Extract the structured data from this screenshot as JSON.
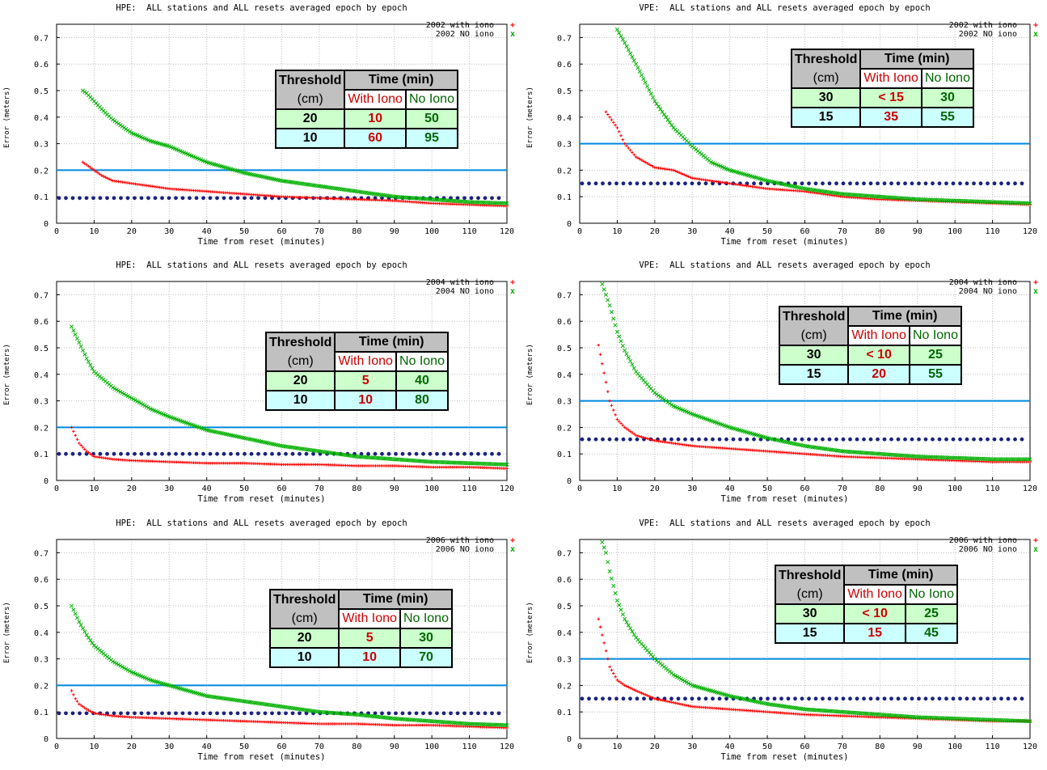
{
  "figure": {
    "panels": [
      {
        "id": "hpe-2002",
        "title": "HPE:  ALL stations and ALL resets averaged epoch by epoch",
        "ylabel": "Error (meters)",
        "xlabel": "Time from reset (minutes)",
        "legend": [
          {
            "label": "2002 with iono",
            "marker": "+"
          },
          {
            "label": "2002 NO iono",
            "marker": "x"
          }
        ],
        "table": {
          "threshold_h1": "Threshold",
          "threshold_h2": "(cm)",
          "time_h": "Time (min)",
          "with_h": "With Iono",
          "no_h": "No Iono",
          "rows": [
            {
              "th": "20",
              "with": "10",
              "no": "50"
            },
            {
              "th": "10",
              "with": "60",
              "no": "95"
            }
          ]
        }
      },
      {
        "id": "vpe-2002",
        "title": "VPE:  ALL stations and ALL resets averaged epoch by epoch",
        "ylabel": "Error (meters)",
        "xlabel": "Time from reset (minutes)",
        "legend": [
          {
            "label": "2002 with iono",
            "marker": "+"
          },
          {
            "label": "2002 NO iono",
            "marker": "x"
          }
        ],
        "table": {
          "threshold_h1": "Threshold",
          "threshold_h2": "(cm)",
          "time_h": "Time (min)",
          "with_h": "With Iono",
          "no_h": "No Iono",
          "rows": [
            {
              "th": "30",
              "with": "< 15",
              "no": "30"
            },
            {
              "th": "15",
              "with": "35",
              "no": "55"
            }
          ]
        }
      },
      {
        "id": "hpe-2004",
        "title": "HPE:  ALL stations and ALL resets averaged epoch by epoch",
        "ylabel": "Error (meters)",
        "xlabel": "Time from reset (minutes)",
        "legend": [
          {
            "label": "2004 with iono",
            "marker": "+"
          },
          {
            "label": "2004 NO iono",
            "marker": "x"
          }
        ],
        "table": {
          "threshold_h1": "Threshold",
          "threshold_h2": "(cm)",
          "time_h": "Time (min)",
          "with_h": "With Iono",
          "no_h": "No Iono",
          "rows": [
            {
              "th": "20",
              "with": "5",
              "no": "40"
            },
            {
              "th": "10",
              "with": "10",
              "no": "80"
            }
          ]
        }
      },
      {
        "id": "vpe-2004",
        "title": "VPE:  ALL stations and ALL resets averaged epoch by epoch",
        "ylabel": "Error (meters)",
        "xlabel": "Time from reset (minutes)",
        "legend": [
          {
            "label": "2004 with iono",
            "marker": "+"
          },
          {
            "label": "2004 NO iono",
            "marker": "x"
          }
        ],
        "table": {
          "threshold_h1": "Threshold",
          "threshold_h2": "(cm)",
          "time_h": "Time (min)",
          "with_h": "With Iono",
          "no_h": "No Iono",
          "rows": [
            {
              "th": "30",
              "with": "< 10",
              "no": "25"
            },
            {
              "th": "15",
              "with": "20",
              "no": "55"
            }
          ]
        }
      },
      {
        "id": "hpe-2006",
        "title": "HPE:  ALL stations and ALL resets averaged epoch by epoch",
        "ylabel": "Error (meters)",
        "xlabel": "Time from reset (minutes)",
        "legend": [
          {
            "label": "2006 with iono",
            "marker": "+"
          },
          {
            "label": "2006 NO iono",
            "marker": "x"
          }
        ],
        "table": {
          "threshold_h1": "Threshold",
          "threshold_h2": "(cm)",
          "time_h": "Time (min)",
          "with_h": "With Iono",
          "no_h": "No Iono",
          "rows": [
            {
              "th": "20",
              "with": "5",
              "no": "30"
            },
            {
              "th": "10",
              "with": "10",
              "no": "70"
            }
          ]
        }
      },
      {
        "id": "vpe-2006",
        "title": "VPE:  ALL stations and ALL resets averaged epoch by epoch",
        "ylabel": "Error (meters)",
        "xlabel": "Time from reset (minutes)",
        "legend": [
          {
            "label": "2006 with iono",
            "marker": "+"
          },
          {
            "label": "2006 NO iono",
            "marker": "x"
          }
        ],
        "table": {
          "threshold_h1": "Threshold",
          "threshold_h2": "(cm)",
          "time_h": "Time (min)",
          "with_h": "With Iono",
          "no_h": "No Iono",
          "rows": [
            {
              "th": "30",
              "with": "< 10",
              "no": "25"
            },
            {
              "th": "15",
              "with": "15",
              "no": "45"
            }
          ]
        }
      }
    ],
    "colors": {
      "with_iono": "#ff0000",
      "no_iono": "#00b000",
      "threshold_line": "#0088dd",
      "dotted_ref": "#1a237e",
      "grid": "#bbbbbb"
    }
  },
  "chart_data": [
    {
      "type": "scatter",
      "title": "HPE:  ALL stations and ALL resets averaged epoch by epoch",
      "xlabel": "Time from reset (minutes)",
      "ylabel": "Error (meters)",
      "xlim": [
        0,
        120
      ],
      "ylim": [
        0,
        0.75
      ],
      "xticks": [
        0,
        10,
        20,
        30,
        40,
        50,
        60,
        70,
        80,
        90,
        100,
        110,
        120
      ],
      "yticks": [
        0,
        0.1,
        0.2,
        0.3,
        0.4,
        0.5,
        0.6,
        0.7
      ],
      "grid": true,
      "legend_position": "top-right",
      "threshold_line": 0.2,
      "reference_dotted": 0.095,
      "series": [
        {
          "name": "2002 with iono",
          "marker": "+",
          "x": [
            7,
            8,
            10,
            12,
            15,
            20,
            25,
            30,
            40,
            50,
            60,
            70,
            80,
            90,
            100,
            110,
            120
          ],
          "y": [
            0.23,
            0.22,
            0.2,
            0.18,
            0.16,
            0.15,
            0.14,
            0.13,
            0.12,
            0.11,
            0.1,
            0.095,
            0.09,
            0.085,
            0.075,
            0.07,
            0.065
          ]
        },
        {
          "name": "2002 NO iono",
          "marker": "x",
          "x": [
            7,
            8,
            10,
            12,
            15,
            20,
            25,
            30,
            35,
            40,
            50,
            60,
            70,
            80,
            90,
            100,
            110,
            120
          ],
          "y": [
            0.5,
            0.49,
            0.46,
            0.43,
            0.39,
            0.34,
            0.31,
            0.29,
            0.26,
            0.23,
            0.19,
            0.16,
            0.14,
            0.12,
            0.1,
            0.09,
            0.08,
            0.075
          ]
        }
      ]
    },
    {
      "type": "scatter",
      "title": "VPE:  ALL stations and ALL resets averaged epoch by epoch",
      "xlabel": "Time from reset (minutes)",
      "ylabel": "Error (meters)",
      "xlim": [
        0,
        120
      ],
      "ylim": [
        0,
        0.75
      ],
      "xticks": [
        0,
        10,
        20,
        30,
        40,
        50,
        60,
        70,
        80,
        90,
        100,
        110,
        120
      ],
      "yticks": [
        0,
        0.1,
        0.2,
        0.3,
        0.4,
        0.5,
        0.6,
        0.7
      ],
      "grid": true,
      "legend_position": "top-right",
      "threshold_line": 0.3,
      "reference_dotted": 0.15,
      "series": [
        {
          "name": "2002 with iono",
          "marker": "+",
          "x": [
            7,
            8,
            10,
            12,
            15,
            20,
            25,
            30,
            40,
            50,
            60,
            70,
            80,
            90,
            100,
            110,
            120
          ],
          "y": [
            0.42,
            0.4,
            0.36,
            0.3,
            0.25,
            0.21,
            0.2,
            0.17,
            0.15,
            0.13,
            0.12,
            0.1,
            0.09,
            0.085,
            0.08,
            0.075,
            0.07
          ]
        },
        {
          "name": "2002 NO iono",
          "marker": "x",
          "x": [
            10,
            12,
            15,
            20,
            25,
            30,
            35,
            40,
            50,
            60,
            70,
            80,
            90,
            100,
            110,
            120
          ],
          "y": [
            0.73,
            0.68,
            0.6,
            0.46,
            0.36,
            0.29,
            0.23,
            0.2,
            0.16,
            0.13,
            0.11,
            0.1,
            0.09,
            0.085,
            0.08,
            0.075
          ]
        }
      ]
    },
    {
      "type": "scatter",
      "title": "HPE:  ALL stations and ALL resets averaged epoch by epoch",
      "xlabel": "Time from reset (minutes)",
      "ylabel": "Error (meters)",
      "xlim": [
        0,
        120
      ],
      "ylim": [
        0,
        0.75
      ],
      "xticks": [
        0,
        10,
        20,
        30,
        40,
        50,
        60,
        70,
        80,
        90,
        100,
        110,
        120
      ],
      "yticks": [
        0,
        0.1,
        0.2,
        0.3,
        0.4,
        0.5,
        0.6,
        0.7
      ],
      "grid": true,
      "legend_position": "top-right",
      "threshold_line": 0.2,
      "reference_dotted": 0.1,
      "series": [
        {
          "name": "2004 with iono",
          "marker": "+",
          "x": [
            4,
            5,
            6,
            8,
            10,
            15,
            20,
            30,
            40,
            50,
            60,
            70,
            80,
            90,
            100,
            110,
            120
          ],
          "y": [
            0.2,
            0.17,
            0.14,
            0.11,
            0.09,
            0.08,
            0.075,
            0.07,
            0.065,
            0.065,
            0.06,
            0.06,
            0.055,
            0.055,
            0.05,
            0.05,
            0.045
          ]
        },
        {
          "name": "2004 NO iono",
          "marker": "x",
          "x": [
            4,
            5,
            6,
            8,
            10,
            15,
            20,
            25,
            30,
            40,
            50,
            60,
            70,
            80,
            90,
            100,
            110,
            120
          ],
          "y": [
            0.58,
            0.55,
            0.52,
            0.46,
            0.41,
            0.35,
            0.31,
            0.27,
            0.24,
            0.19,
            0.16,
            0.13,
            0.11,
            0.09,
            0.08,
            0.07,
            0.065,
            0.06
          ]
        }
      ]
    },
    {
      "type": "scatter",
      "title": "VPE:  ALL stations and ALL resets averaged epoch by epoch",
      "xlabel": "Time from reset (minutes)",
      "ylabel": "Error (meters)",
      "xlim": [
        0,
        120
      ],
      "ylim": [
        0,
        0.75
      ],
      "xticks": [
        0,
        10,
        20,
        30,
        40,
        50,
        60,
        70,
        80,
        90,
        100,
        110,
        120
      ],
      "yticks": [
        0,
        0.1,
        0.2,
        0.3,
        0.4,
        0.5,
        0.6,
        0.7
      ],
      "grid": true,
      "legend_position": "top-right",
      "threshold_line": 0.3,
      "reference_dotted": 0.155,
      "series": [
        {
          "name": "2004 with iono",
          "marker": "+",
          "x": [
            5,
            6,
            7,
            8,
            10,
            12,
            15,
            20,
            30,
            40,
            50,
            60,
            70,
            80,
            90,
            100,
            110,
            120
          ],
          "y": [
            0.51,
            0.44,
            0.37,
            0.3,
            0.23,
            0.2,
            0.17,
            0.15,
            0.13,
            0.12,
            0.11,
            0.1,
            0.09,
            0.085,
            0.08,
            0.075,
            0.07,
            0.07
          ]
        },
        {
          "name": "2004 NO iono",
          "marker": "x",
          "x": [
            6,
            7,
            8,
            10,
            12,
            15,
            20,
            25,
            30,
            40,
            50,
            60,
            70,
            80,
            90,
            100,
            110,
            120
          ],
          "y": [
            0.74,
            0.7,
            0.66,
            0.56,
            0.49,
            0.41,
            0.33,
            0.28,
            0.25,
            0.2,
            0.16,
            0.13,
            0.11,
            0.1,
            0.09,
            0.085,
            0.08,
            0.08
          ]
        }
      ]
    },
    {
      "type": "scatter",
      "title": "HPE:  ALL stations and ALL resets averaged epoch by epoch",
      "xlabel": "Time from reset (minutes)",
      "ylabel": "Error (meters)",
      "xlim": [
        0,
        120
      ],
      "ylim": [
        0,
        0.75
      ],
      "xticks": [
        0,
        10,
        20,
        30,
        40,
        50,
        60,
        70,
        80,
        90,
        100,
        110,
        120
      ],
      "yticks": [
        0,
        0.1,
        0.2,
        0.3,
        0.4,
        0.5,
        0.6,
        0.7
      ],
      "grid": true,
      "legend_position": "top-right",
      "threshold_line": 0.2,
      "reference_dotted": 0.095,
      "series": [
        {
          "name": "2006 with iono",
          "marker": "+",
          "x": [
            4,
            5,
            6,
            8,
            10,
            15,
            20,
            30,
            40,
            50,
            60,
            70,
            80,
            90,
            100,
            110,
            120
          ],
          "y": [
            0.18,
            0.15,
            0.13,
            0.11,
            0.095,
            0.085,
            0.08,
            0.075,
            0.07,
            0.065,
            0.06,
            0.055,
            0.055,
            0.05,
            0.05,
            0.045,
            0.04
          ]
        },
        {
          "name": "2006 NO iono",
          "marker": "x",
          "x": [
            4,
            5,
            6,
            8,
            10,
            15,
            20,
            25,
            30,
            40,
            50,
            60,
            70,
            80,
            90,
            100,
            110,
            120
          ],
          "y": [
            0.5,
            0.47,
            0.44,
            0.39,
            0.35,
            0.29,
            0.25,
            0.22,
            0.2,
            0.16,
            0.14,
            0.12,
            0.1,
            0.09,
            0.075,
            0.065,
            0.055,
            0.05
          ]
        }
      ]
    },
    {
      "type": "scatter",
      "title": "VPE:  ALL stations and ALL resets averaged epoch by epoch",
      "xlabel": "Time from reset (minutes)",
      "ylabel": "Error (meters)",
      "xlim": [
        0,
        120
      ],
      "ylim": [
        0,
        0.75
      ],
      "xticks": [
        0,
        10,
        20,
        30,
        40,
        50,
        60,
        70,
        80,
        90,
        100,
        110,
        120
      ],
      "yticks": [
        0,
        0.1,
        0.2,
        0.3,
        0.4,
        0.5,
        0.6,
        0.7
      ],
      "grid": true,
      "legend_position": "top-right",
      "threshold_line": 0.3,
      "reference_dotted": 0.15,
      "series": [
        {
          "name": "2006 with iono",
          "marker": "+",
          "x": [
            5,
            6,
            7,
            8,
            10,
            12,
            15,
            20,
            30,
            40,
            50,
            60,
            70,
            80,
            90,
            100,
            110,
            120
          ],
          "y": [
            0.45,
            0.39,
            0.33,
            0.27,
            0.22,
            0.2,
            0.18,
            0.15,
            0.12,
            0.11,
            0.1,
            0.09,
            0.085,
            0.08,
            0.075,
            0.07,
            0.065,
            0.065
          ]
        },
        {
          "name": "2006 NO iono",
          "marker": "x",
          "x": [
            6,
            7,
            8,
            10,
            12,
            15,
            20,
            25,
            30,
            40,
            50,
            60,
            70,
            80,
            90,
            100,
            110,
            120
          ],
          "y": [
            0.74,
            0.7,
            0.63,
            0.52,
            0.45,
            0.38,
            0.3,
            0.24,
            0.2,
            0.16,
            0.13,
            0.11,
            0.1,
            0.09,
            0.08,
            0.075,
            0.07,
            0.065
          ]
        }
      ]
    }
  ]
}
